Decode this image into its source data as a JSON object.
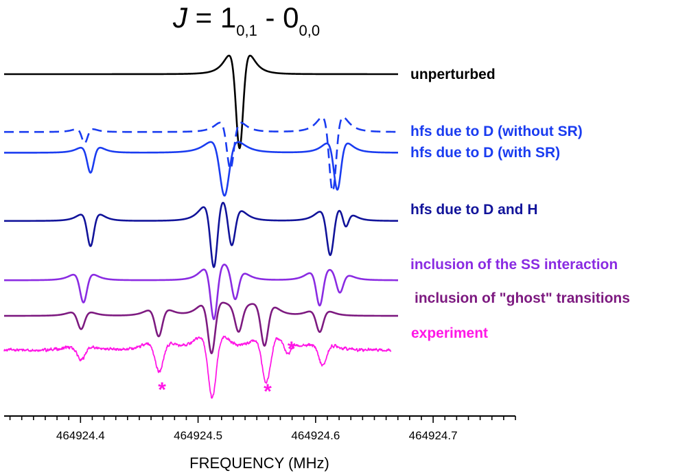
{
  "chart_data": {
    "type": "line",
    "title": {
      "main": "J = 1",
      "main_italic_letter": "J",
      "rest": " = 1",
      "sub1": "0,1",
      "mid": " - 0",
      "sub2": "0,0"
    },
    "xlabel": "FREQUENCY  (MHz)",
    "ylabel": "",
    "xlim": [
      464924.335,
      464924.77
    ],
    "x_ticks": [
      464924.4,
      464924.5,
      464924.6,
      464924.7
    ],
    "x_tick_labels": [
      "464924.4",
      "464924.5",
      "464924.6",
      "464924.7"
    ],
    "grid": false,
    "series": [
      {
        "name": "unperturbed",
        "color": "#000000",
        "style": "solid",
        "baseline": 0,
        "components": [
          {
            "x0": 464924.5353,
            "amp": -1.0,
            "width": 0.0052
          }
        ]
      },
      {
        "name": "hfs due to D (without SR)",
        "color": "#1a3cf0",
        "style": "dashed",
        "baseline": -0.78,
        "components": [
          {
            "x0": 464924.4035,
            "amp": -0.15,
            "width": 0.0042
          },
          {
            "x0": 464924.5275,
            "amp": -0.5,
            "width": 0.0052
          },
          {
            "x0": 464924.6145,
            "amp": -0.8,
            "width": 0.0052
          }
        ]
      },
      {
        "name": "hfs due to D (with SR)",
        "color": "#1a3cf0",
        "style": "solid",
        "baseline": -1.06,
        "components": [
          {
            "x0": 464924.4085,
            "amp": -0.27,
            "width": 0.0048
          },
          {
            "x0": 464924.5225,
            "amp": -0.58,
            "width": 0.0068
          },
          {
            "x0": 464924.6185,
            "amp": -0.5,
            "width": 0.0052
          }
        ]
      },
      {
        "name": "hfs due to D and H",
        "color": "#11139a",
        "style": "solid",
        "baseline": -1.98,
        "components": [
          {
            "x0": 464924.4085,
            "amp": -0.34,
            "width": 0.0048
          },
          {
            "x0": 464924.5135,
            "amp": -0.68,
            "width": 0.0052
          },
          {
            "x0": 464924.5285,
            "amp": -0.42,
            "width": 0.0052
          },
          {
            "x0": 464924.6125,
            "amp": -0.48,
            "width": 0.0052
          },
          {
            "x0": 464924.6255,
            "amp": -0.16,
            "width": 0.0042
          }
        ]
      },
      {
        "name": "inclusion of the SS interaction",
        "color": "#8a2be2",
        "style": "solid",
        "baseline": -2.78,
        "components": [
          {
            "x0": 464924.4025,
            "amp": -0.3,
            "width": 0.005
          },
          {
            "x0": 464924.5135,
            "amp": -0.55,
            "width": 0.005
          },
          {
            "x0": 464924.5315,
            "amp": -0.3,
            "width": 0.005
          },
          {
            "x0": 464924.6035,
            "amp": -0.36,
            "width": 0.005
          },
          {
            "x0": 464924.6205,
            "amp": -0.2,
            "width": 0.005
          }
        ]
      },
      {
        "name": "inclusion of \"ghost\" transitions",
        "color": "#7d1a80",
        "style": "solid",
        "baseline": -3.26,
        "components": [
          {
            "x0": 464924.4005,
            "amp": -0.18,
            "width": 0.005
          },
          {
            "x0": 464924.4665,
            "amp": -0.28,
            "width": 0.0052
          },
          {
            "x0": 464924.5115,
            "amp": -0.52,
            "width": 0.0052
          },
          {
            "x0": 464924.5345,
            "amp": -0.26,
            "width": 0.0052
          },
          {
            "x0": 464924.5565,
            "amp": -0.42,
            "width": 0.0052
          },
          {
            "x0": 464924.6035,
            "amp": -0.22,
            "width": 0.005
          }
        ]
      },
      {
        "name": "experiment",
        "color": "#ff17e6",
        "style": "solid",
        "baseline": -3.72,
        "noise": 0.045,
        "components": [
          {
            "x0": 464924.4005,
            "amp": -0.14,
            "width": 0.0055
          },
          {
            "x0": 464924.467,
            "amp": -0.3,
            "width": 0.006
          },
          {
            "x0": 464924.512,
            "amp": -0.65,
            "width": 0.006
          },
          {
            "x0": 464924.558,
            "amp": -0.46,
            "width": 0.006
          },
          {
            "x0": 464924.576,
            "amp": -0.12,
            "width": 0.0045
          },
          {
            "x0": 464924.606,
            "amp": -0.22,
            "width": 0.0055
          }
        ]
      }
    ],
    "markers": [
      {
        "text": "*",
        "x": 464924.467,
        "series": "experiment"
      },
      {
        "text": "*",
        "x": 464924.558,
        "series": "experiment"
      },
      {
        "text": "*",
        "x": 464924.576,
        "series": "experiment"
      }
    ]
  }
}
